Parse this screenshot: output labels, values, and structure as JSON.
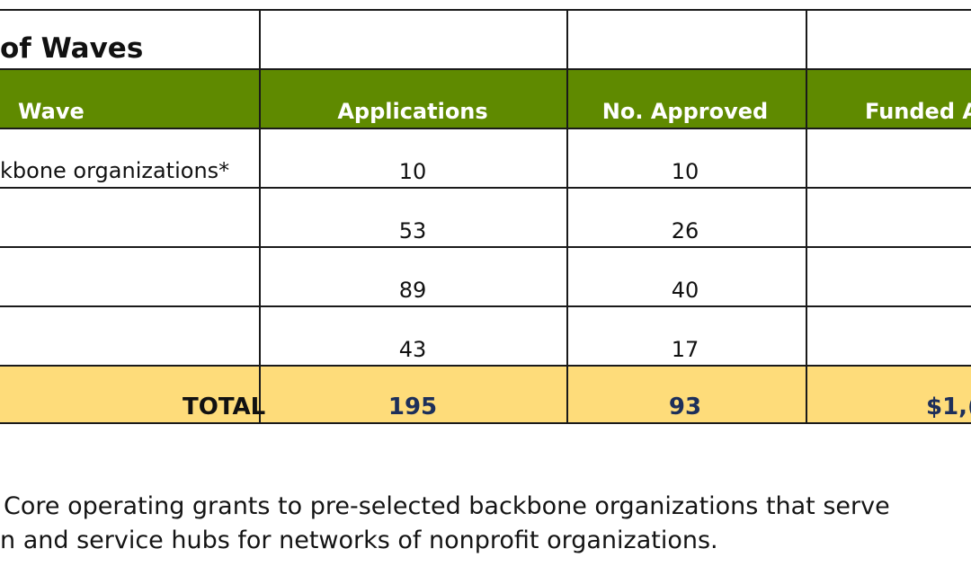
{
  "table": {
    "title": "of Waves",
    "columns": [
      "Wave",
      "Applications",
      "No. Approved",
      "Funded A"
    ],
    "rows": [
      {
        "wave": "kbone organizations*",
        "applications": "10",
        "approved": "10"
      },
      {
        "wave": "",
        "applications": "53",
        "approved": "26"
      },
      {
        "wave": "",
        "applications": "89",
        "approved": "40"
      },
      {
        "wave": "",
        "applications": "43",
        "approved": "17"
      }
    ],
    "total": {
      "label": "TOTAL",
      "applications": "195",
      "approved": "93",
      "funded": "$1,("
    }
  },
  "footnote": {
    "line1": "Core operating grants to pre-selected backbone organizations that serve",
    "line2": "n and service hubs for networks of nonprofit organizations."
  },
  "colors": {
    "header_bg": "#5f8a00",
    "total_bg": "#fedc7a",
    "border": "#1a1a1a",
    "total_text": "#1d2f5a"
  }
}
